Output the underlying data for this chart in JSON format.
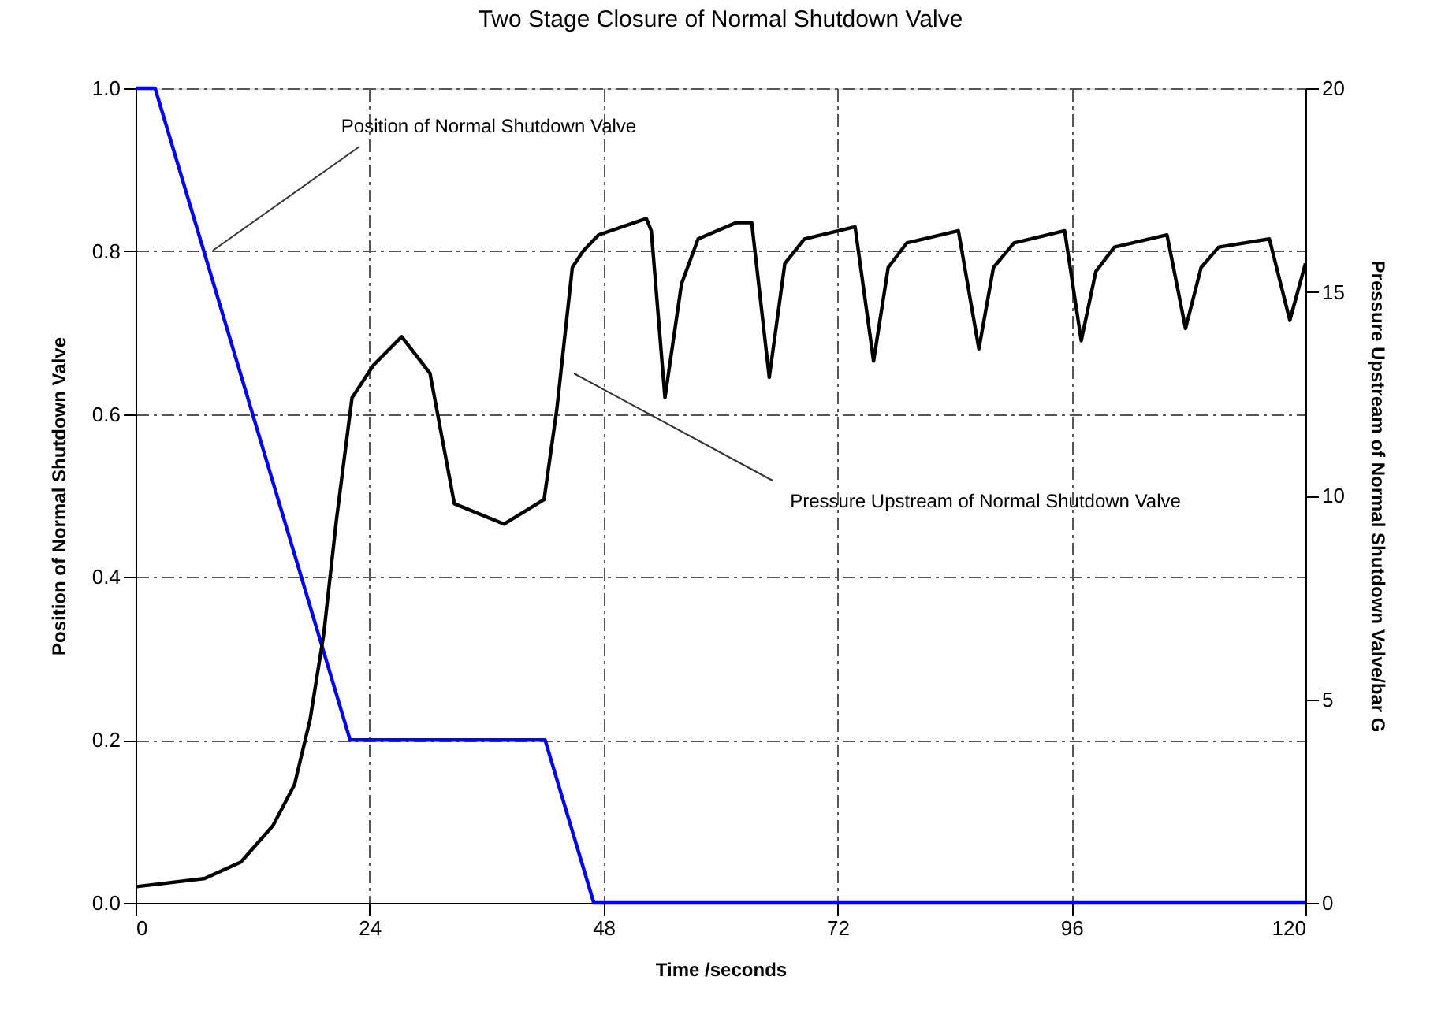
{
  "chart_data": {
    "type": "line",
    "title": "Two Stage Closure of Normal Shutdown Valve",
    "xlabel": "Time /seconds",
    "ylabel": "Position of Normal Shutdown Valve",
    "y2label": "Pressure Upstream of Normal Shutdown Valve/bar G",
    "xlim": [
      0,
      120
    ],
    "xticks": [
      0,
      24,
      48,
      72,
      96,
      120
    ],
    "ylim": [
      0,
      1
    ],
    "yticks": [
      {
        "value": 0,
        "label": "0.0"
      },
      {
        "value": 0.2,
        "label": "0.2"
      },
      {
        "value": 0.4,
        "label": "0.4"
      },
      {
        "value": 0.6,
        "label": "0.6"
      },
      {
        "value": 0.8,
        "label": "0.8"
      },
      {
        "value": 1,
        "label": "1.0"
      }
    ],
    "y2lim": [
      0,
      20
    ],
    "y2ticks": [
      0,
      5,
      10,
      15,
      20
    ],
    "grid": true,
    "series": [
      {
        "color": "#0000ff",
        "x": [
          0,
          2,
          22,
          42,
          47,
          120
        ],
        "values": [
          1,
          1,
          0.2,
          0.2,
          0,
          0
        ]
      },
      {
        "color": "#000000",
        "axis": "y2",
        "x": [
          0.1,
          7.1,
          10.8,
          14.1,
          16.3,
          17.9,
          19.3,
          20.6,
          22.2,
          24.4,
          27.3,
          30.2,
          32.7,
          37.8,
          41.9,
          43.2,
          44.8,
          45.9,
          47.5,
          52.4,
          52.9,
          54.3,
          56.0,
          57.7,
          61.6,
          63.2,
          65.0,
          66.6,
          68.6,
          73.8,
          75.7,
          77.2,
          79.1,
          84.4,
          86.5,
          88.0,
          90.1,
          95.3,
          97.0,
          98.5,
          100.4,
          105.8,
          107.7,
          109.3,
          111.1,
          116.3,
          118.4,
          120
        ],
        "values": [
          0.4,
          0.6,
          1.0,
          1.9,
          2.9,
          4.5,
          6.6,
          9.4,
          12.4,
          13.2,
          13.9,
          13.0,
          9.8,
          9.3,
          9.9,
          12.1,
          15.6,
          16.0,
          16.4,
          16.8,
          16.5,
          12.4,
          15.2,
          16.3,
          16.7,
          16.7,
          12.9,
          15.7,
          16.3,
          16.6,
          13.3,
          15.6,
          16.2,
          16.5,
          13.6,
          15.6,
          16.2,
          16.5,
          13.8,
          15.5,
          16.1,
          16.4,
          14.1,
          15.6,
          16.1,
          16.3,
          14.3,
          15.7
        ]
      }
    ],
    "annotations": [
      "Position of Normal Shutdown Valve",
      "Pressure Upstream of Normal Shutdown Valve"
    ]
  }
}
